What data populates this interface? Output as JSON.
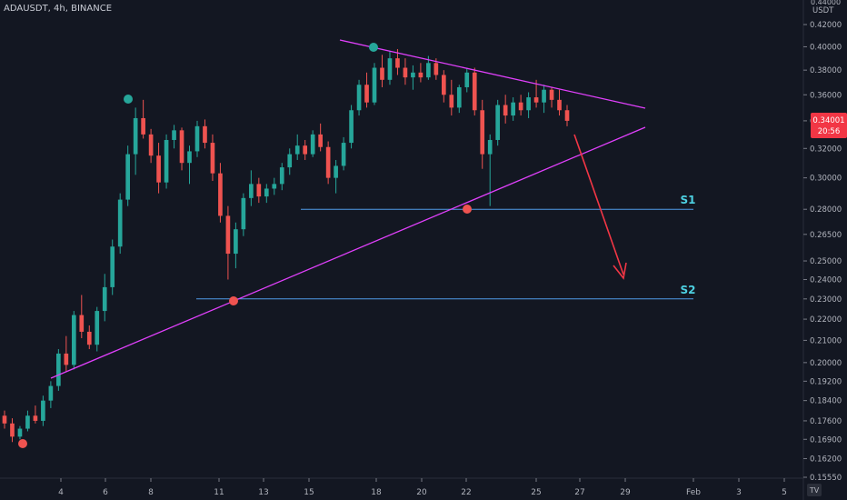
{
  "symbol_title": "ADAUSDT, 4h, BINANCE",
  "currency": "USDT",
  "top_price_label": "0.44000",
  "price_tag": {
    "price": "0.34001",
    "countdown": "20:56",
    "color": "#f23645"
  },
  "colors": {
    "up": "#26a69a",
    "down": "#ef5350",
    "trend": "#e040fb",
    "level": "#4f9ce8",
    "level_text": "#4dd0e1",
    "arrow": "#f23645"
  },
  "chart_data": {
    "type": "candlestick",
    "y_axis_ticks": [
      "0.42000",
      "0.40000",
      "0.38000",
      "0.36000",
      "0.34000",
      "0.32000",
      "0.30000",
      "0.28000",
      "0.26500",
      "0.25000",
      "0.24000",
      "0.23000",
      "0.22000",
      "0.21000",
      "0.20000",
      "0.19200",
      "0.18400",
      "0.17600",
      "0.16900",
      "0.16200",
      "0.15550"
    ],
    "x_axis_ticks": [
      "4",
      "6",
      "8",
      "11",
      "13",
      "15",
      "18",
      "20",
      "22",
      "25",
      "27",
      "29",
      "Feb",
      "3",
      "5"
    ],
    "levels": [
      {
        "label": "S1",
        "price": 0.28
      },
      {
        "label": "S2",
        "price": 0.23
      }
    ],
    "candles": [
      [
        0.178,
        0.18,
        0.173,
        0.175
      ],
      [
        0.175,
        0.177,
        0.168,
        0.17
      ],
      [
        0.17,
        0.174,
        0.169,
        0.173
      ],
      [
        0.173,
        0.18,
        0.172,
        0.178
      ],
      [
        0.178,
        0.182,
        0.175,
        0.176
      ],
      [
        0.176,
        0.186,
        0.174,
        0.184
      ],
      [
        0.184,
        0.192,
        0.181,
        0.19
      ],
      [
        0.19,
        0.206,
        0.188,
        0.204
      ],
      [
        0.204,
        0.212,
        0.196,
        0.199
      ],
      [
        0.199,
        0.224,
        0.197,
        0.222
      ],
      [
        0.222,
        0.232,
        0.211,
        0.214
      ],
      [
        0.214,
        0.217,
        0.206,
        0.208
      ],
      [
        0.208,
        0.226,
        0.205,
        0.224
      ],
      [
        0.224,
        0.243,
        0.219,
        0.236
      ],
      [
        0.236,
        0.262,
        0.232,
        0.258
      ],
      [
        0.258,
        0.29,
        0.254,
        0.286
      ],
      [
        0.286,
        0.322,
        0.282,
        0.316
      ],
      [
        0.316,
        0.35,
        0.302,
        0.342
      ],
      [
        0.342,
        0.356,
        0.327,
        0.33
      ],
      [
        0.33,
        0.334,
        0.31,
        0.315
      ],
      [
        0.315,
        0.324,
        0.29,
        0.297
      ],
      [
        0.297,
        0.33,
        0.293,
        0.326
      ],
      [
        0.326,
        0.337,
        0.32,
        0.333
      ],
      [
        0.333,
        0.335,
        0.305,
        0.31
      ],
      [
        0.31,
        0.322,
        0.296,
        0.318
      ],
      [
        0.318,
        0.34,
        0.314,
        0.336
      ],
      [
        0.336,
        0.341,
        0.32,
        0.324
      ],
      [
        0.324,
        0.33,
        0.298,
        0.303
      ],
      [
        0.303,
        0.31,
        0.272,
        0.276
      ],
      [
        0.276,
        0.282,
        0.24,
        0.254
      ],
      [
        0.254,
        0.272,
        0.246,
        0.268
      ],
      [
        0.268,
        0.29,
        0.264,
        0.287
      ],
      [
        0.287,
        0.305,
        0.282,
        0.296
      ],
      [
        0.296,
        0.3,
        0.284,
        0.288
      ],
      [
        0.288,
        0.296,
        0.284,
        0.293
      ],
      [
        0.293,
        0.3,
        0.289,
        0.296
      ],
      [
        0.296,
        0.31,
        0.292,
        0.307
      ],
      [
        0.307,
        0.32,
        0.302,
        0.316
      ],
      [
        0.316,
        0.33,
        0.312,
        0.322
      ],
      [
        0.322,
        0.326,
        0.312,
        0.316
      ],
      [
        0.316,
        0.333,
        0.314,
        0.33
      ],
      [
        0.33,
        0.338,
        0.318,
        0.321
      ],
      [
        0.321,
        0.325,
        0.296,
        0.3
      ],
      [
        0.3,
        0.312,
        0.29,
        0.308
      ],
      [
        0.308,
        0.328,
        0.305,
        0.324
      ],
      [
        0.324,
        0.352,
        0.32,
        0.348
      ],
      [
        0.348,
        0.372,
        0.344,
        0.368
      ],
      [
        0.368,
        0.378,
        0.35,
        0.354
      ],
      [
        0.354,
        0.386,
        0.352,
        0.382
      ],
      [
        0.382,
        0.393,
        0.366,
        0.372
      ],
      [
        0.372,
        0.396,
        0.368,
        0.39
      ],
      [
        0.39,
        0.398,
        0.376,
        0.382
      ],
      [
        0.382,
        0.39,
        0.368,
        0.374
      ],
      [
        0.374,
        0.384,
        0.364,
        0.378
      ],
      [
        0.378,
        0.386,
        0.37,
        0.374
      ],
      [
        0.374,
        0.392,
        0.372,
        0.386
      ],
      [
        0.386,
        0.39,
        0.372,
        0.376
      ],
      [
        0.376,
        0.38,
        0.354,
        0.36
      ],
      [
        0.36,
        0.372,
        0.344,
        0.35
      ],
      [
        0.35,
        0.368,
        0.346,
        0.366
      ],
      [
        0.366,
        0.382,
        0.362,
        0.378
      ],
      [
        0.378,
        0.382,
        0.344,
        0.348
      ],
      [
        0.348,
        0.356,
        0.306,
        0.316
      ],
      [
        0.316,
        0.33,
        0.282,
        0.326
      ],
      [
        0.326,
        0.356,
        0.322,
        0.352
      ],
      [
        0.352,
        0.36,
        0.338,
        0.344
      ],
      [
        0.344,
        0.358,
        0.34,
        0.354
      ],
      [
        0.354,
        0.36,
        0.344,
        0.348
      ],
      [
        0.348,
        0.362,
        0.342,
        0.358
      ],
      [
        0.358,
        0.372,
        0.35,
        0.354
      ],
      [
        0.354,
        0.368,
        0.346,
        0.364
      ],
      [
        0.364,
        0.366,
        0.35,
        0.356
      ],
      [
        0.356,
        0.364,
        0.344,
        0.348
      ],
      [
        0.348,
        0.352,
        0.336,
        0.34
      ]
    ]
  },
  "ui": {
    "logo": "TV"
  }
}
